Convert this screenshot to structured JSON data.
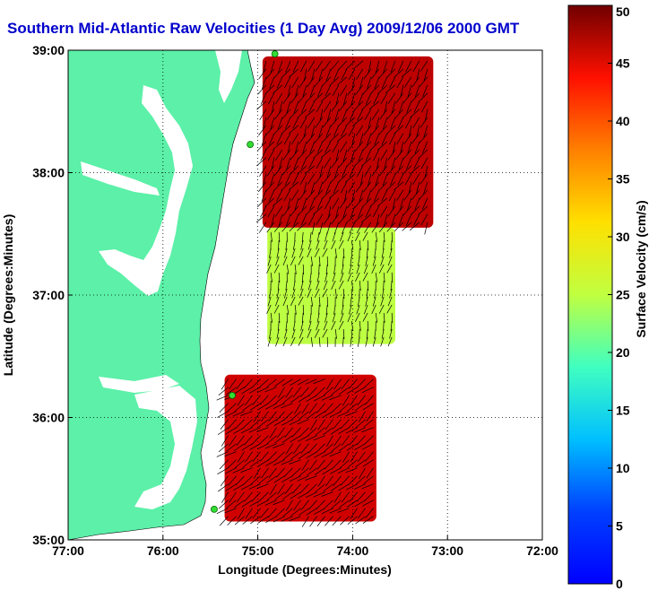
{
  "chart_data": {
    "type": "heatmap",
    "title": "Southern Mid-Atlantic Raw Velocities (1 Day Avg) 2009/12/06 2000 GMT",
    "xlabel": "Longitude (Degrees:Minutes)",
    "ylabel": "Latitude (Degrees:Minutes)",
    "xlim": [
      -77,
      -72
    ],
    "ylim": [
      35,
      39
    ],
    "x_ticks": [
      {
        "value": -77,
        "label": "77:00"
      },
      {
        "value": -76,
        "label": "76:00"
      },
      {
        "value": -75,
        "label": "75:00"
      },
      {
        "value": -74,
        "label": "74:00"
      },
      {
        "value": -73,
        "label": "73:00"
      },
      {
        "value": -72,
        "label": "72:00"
      }
    ],
    "y_ticks": [
      {
        "value": 35,
        "label": "35:00"
      },
      {
        "value": 36,
        "label": "36:00"
      },
      {
        "value": 37,
        "label": "37:00"
      },
      {
        "value": 38,
        "label": "38:00"
      },
      {
        "value": 39,
        "label": "39:00"
      }
    ],
    "grid": true,
    "colorbar": {
      "label": "Surface Velocity (cm/s)",
      "range": [
        0,
        50
      ],
      "ticks": [
        0,
        5,
        10,
        15,
        20,
        25,
        30,
        35,
        40,
        45,
        50
      ],
      "colormap": "jet"
    },
    "colors": {
      "land": "#5cf0a8",
      "water": "#ffffff",
      "title": "#0000cc",
      "vector": "#000000"
    },
    "regions": [
      {
        "name": "north",
        "lon_w": -74.95,
        "lon_e": -73.15,
        "lat_s": 37.55,
        "lat_n": 38.95,
        "speed_cm_s": 47
      },
      {
        "name": "middle",
        "lon_w": -74.9,
        "lon_e": -73.55,
        "lat_s": 36.6,
        "lat_n": 37.55,
        "speed_cm_s": 28
      },
      {
        "name": "south",
        "lon_w": -75.35,
        "lon_e": -73.75,
        "lat_s": 35.15,
        "lat_n": 36.35,
        "speed_cm_s": 46
      }
    ],
    "stations": [
      {
        "lon": -74.82,
        "lat": 38.97
      },
      {
        "lon": -75.08,
        "lat": 38.23
      },
      {
        "lon": -75.27,
        "lat": 36.18
      },
      {
        "lon": -75.46,
        "lat": 35.25
      }
    ]
  }
}
